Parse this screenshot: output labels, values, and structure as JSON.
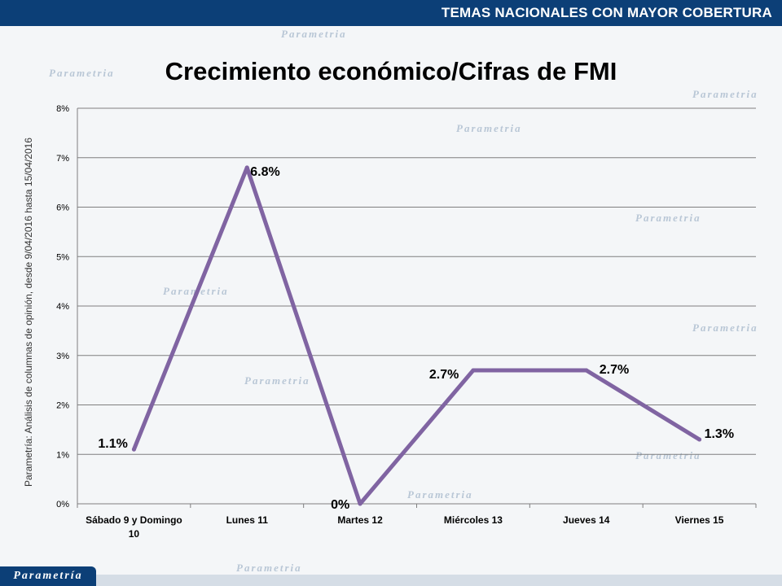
{
  "header": {
    "banner": "TEMAS NACIONALES CON MAYOR COBERTURA"
  },
  "side_note": "Parametría: Análisis de columnas de opinión, desde 9/04/2016 hasta 15/04/2016",
  "logo": "Parametría",
  "watermark": "Parametria",
  "colors": {
    "line": "#8064a2",
    "bar": "#0c3f77",
    "grid": "#7f7f7f"
  },
  "chart_data": {
    "type": "line",
    "title": "Crecimiento económico/Cifras de FMI",
    "categories": [
      "Sábado 9 y Domingo 10",
      "Lunes 11",
      "Martes 12",
      "Miércoles 13",
      "Jueves 14",
      "Viernes 15"
    ],
    "series": [
      {
        "values": [
          1.1,
          6.8,
          0,
          2.7,
          2.7,
          1.3
        ]
      }
    ],
    "data_labels": [
      "1.1%",
      "6.8%",
      "0%",
      "2.7%",
      "2.7%",
      "1.3%"
    ],
    "y_ticks": [
      "0%",
      "1%",
      "2%",
      "3%",
      "4%",
      "5%",
      "6%",
      "7%",
      "8%"
    ],
    "ylim": [
      0,
      8
    ],
    "grid": true,
    "legend": "none"
  }
}
